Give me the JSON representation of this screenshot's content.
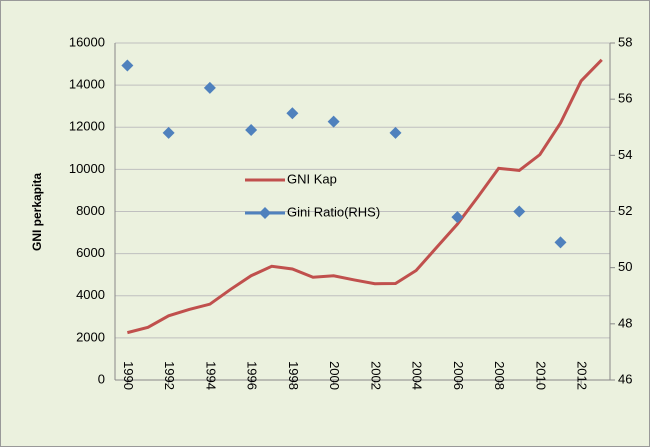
{
  "chart_data": {
    "type": "line-scatter",
    "y_label": "GNI perkapita",
    "x": [
      1990,
      1991,
      1992,
      1993,
      1994,
      1995,
      1996,
      1997,
      1998,
      1999,
      2000,
      2001,
      2002,
      2003,
      2004,
      2005,
      2006,
      2007,
      2008,
      2009,
      2010,
      2011,
      2012,
      2013
    ],
    "series": [
      {
        "name": "GNI Kap",
        "color": "#c0504d",
        "type": "line",
        "values": [
          2250,
          2500,
          3050,
          3350,
          3600,
          4300,
          4950,
          5400,
          5270,
          4880,
          4950,
          4750,
          4570,
          4580,
          5200,
          6300,
          7400,
          8700,
          10050,
          9950,
          10700,
          12200,
          14200,
          15200
        ]
      },
      {
        "name": "Gini Ratio(RHS)",
        "color": "#4f81bd",
        "type": "scatter",
        "axis": "y2",
        "x": [
          1990,
          1992,
          1994,
          1996,
          1998,
          2000,
          2003,
          2006,
          2009,
          2011
        ],
        "values": [
          57.2,
          54.8,
          56.4,
          54.9,
          55.5,
          55.2,
          54.8,
          51.8,
          52.0,
          50.9
        ]
      }
    ],
    "xlim": [
      1989.4,
      2013.4
    ],
    "xticks": [
      1990,
      1992,
      1994,
      1996,
      1998,
      2000,
      2002,
      2004,
      2006,
      2008,
      2010,
      2012
    ],
    "ylim": [
      0,
      16000
    ],
    "yticks": [
      0,
      2000,
      4000,
      6000,
      8000,
      10000,
      12000,
      14000,
      16000
    ],
    "y2lim": [
      46,
      58
    ],
    "y2ticks": [
      46,
      48,
      50,
      52,
      54,
      56,
      58
    ],
    "grid": true
  }
}
